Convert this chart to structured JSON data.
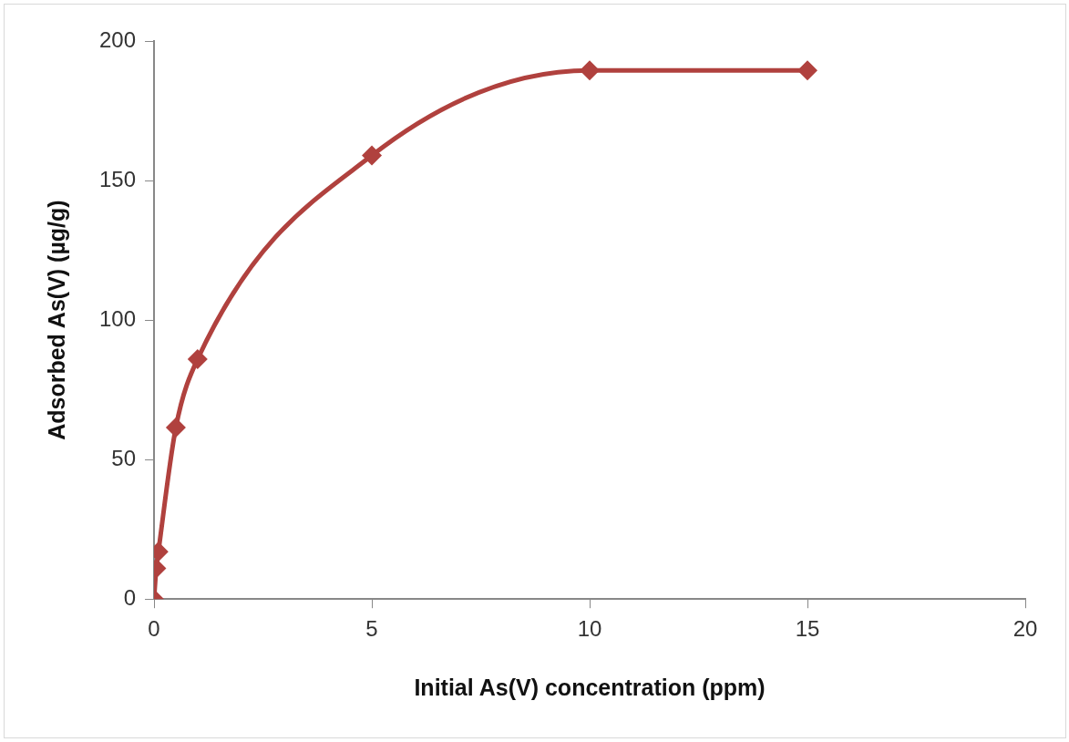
{
  "chart_data": {
    "type": "line",
    "xlabel": "Initial As(V) concentration (ppm)",
    "ylabel": "Adsorbed As(V) (µg/g)",
    "series": [
      {
        "color": "#b0413e",
        "x": [
          0,
          0.05,
          0.1,
          0.5,
          1,
          5,
          10,
          15
        ],
        "values": [
          0,
          11,
          17,
          61.5,
          86,
          159,
          189.5,
          189.5
        ]
      }
    ],
    "xlim": [
      0,
      20
    ],
    "xticks": [
      0,
      5,
      10,
      15,
      20
    ],
    "ylim": [
      0,
      200
    ],
    "yticks": [
      0,
      50,
      100,
      150,
      200
    ],
    "grid": false,
    "legend": false,
    "marker": "diamond",
    "line_style": "solid"
  }
}
